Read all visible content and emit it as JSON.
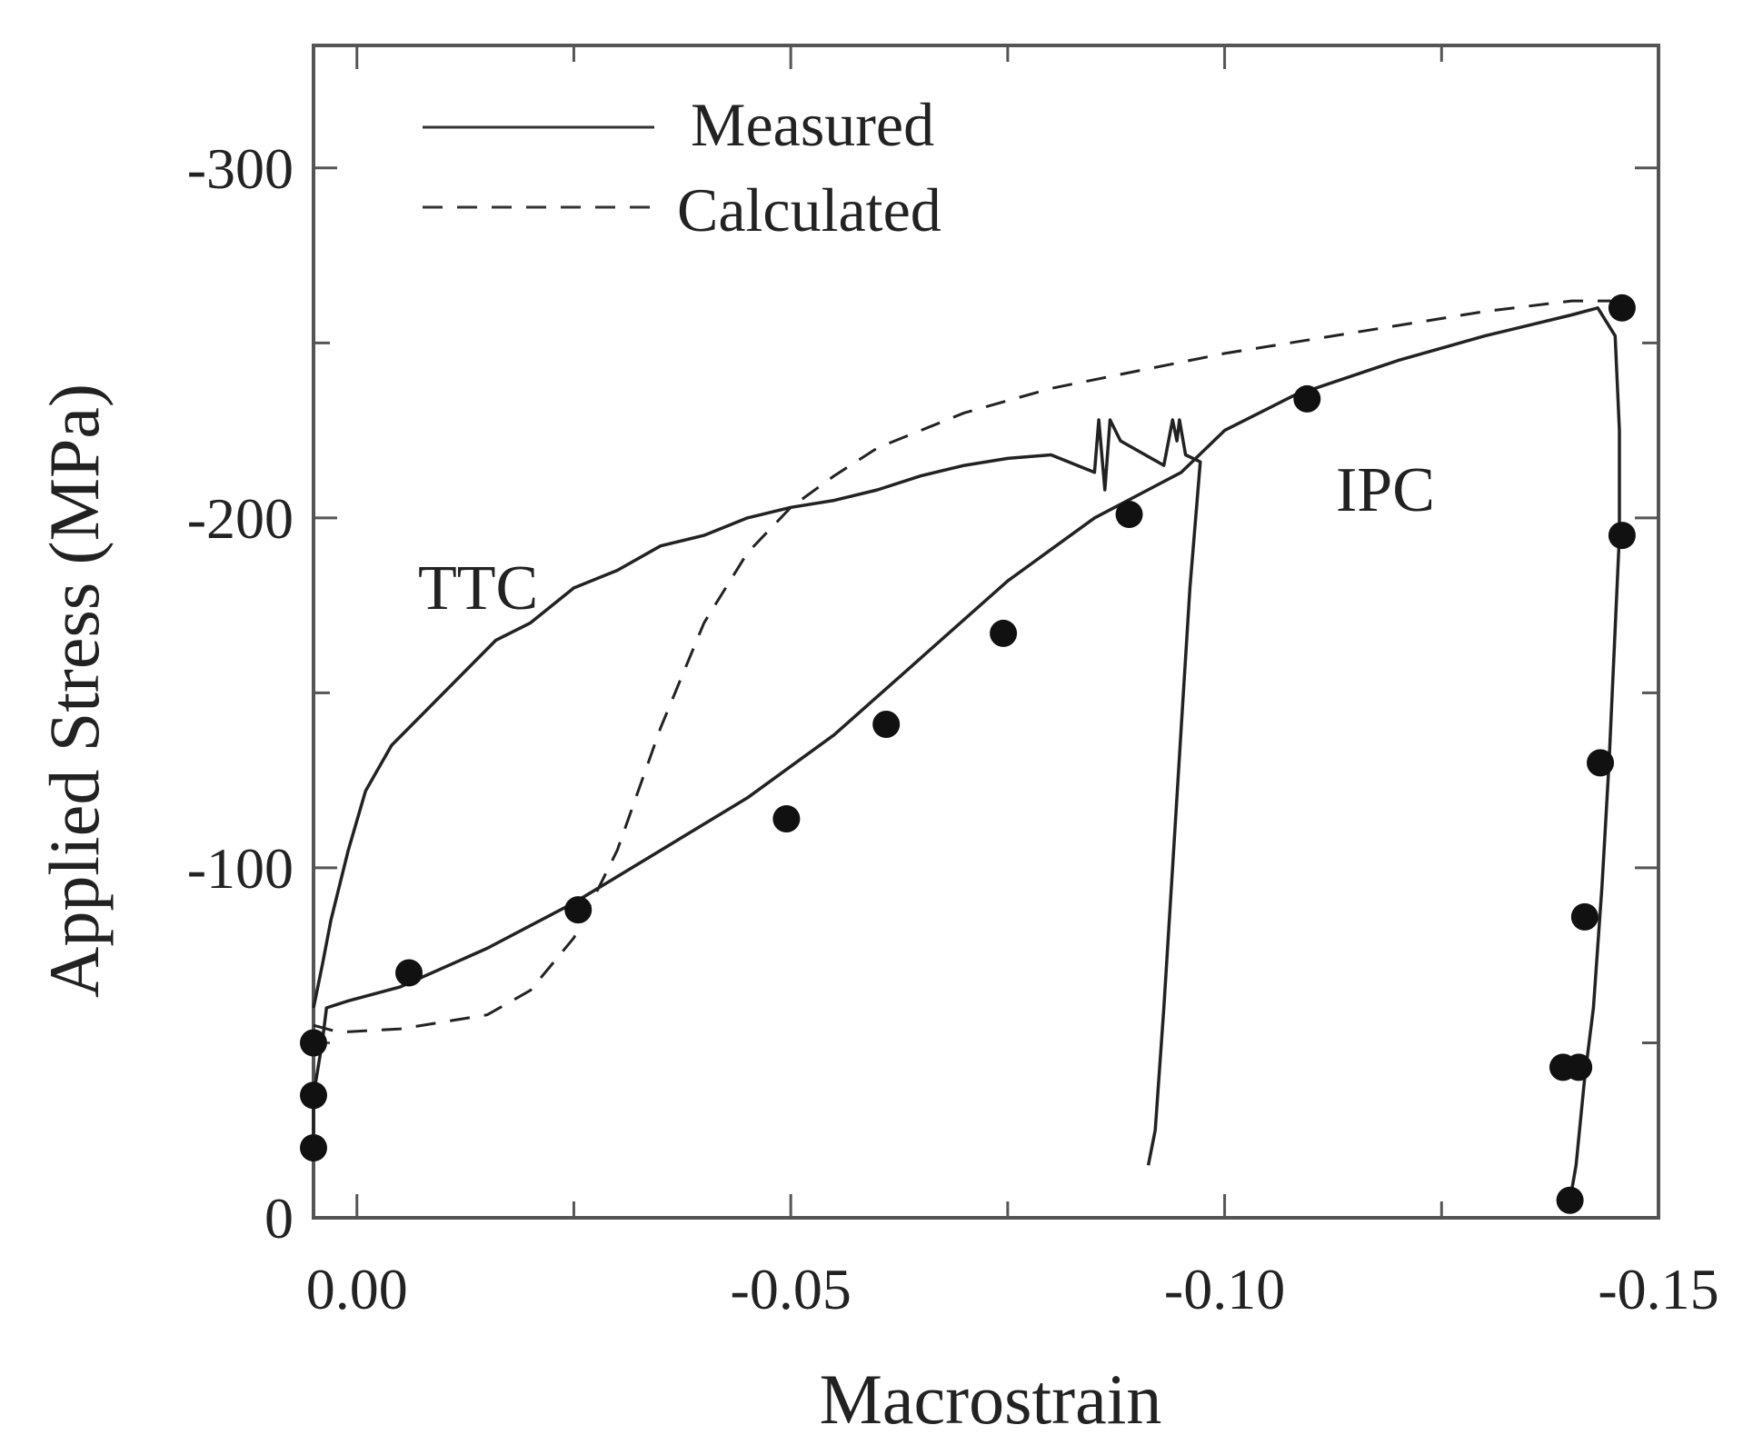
{
  "chart_data": {
    "type": "line",
    "title": "",
    "xlabel": "Macrostrain",
    "ylabel": "Applied Stress (MPa)",
    "xlim": [
      0.005,
      -0.15
    ],
    "ylim": [
      0,
      -335
    ],
    "x_ticks": [
      {
        "value": 0.0,
        "label": "0.00"
      },
      {
        "value": -0.05,
        "label": "-0.05"
      },
      {
        "value": -0.1,
        "label": "-0.10"
      },
      {
        "value": -0.15,
        "label": "-0.15"
      }
    ],
    "y_ticks": [
      {
        "value": 0,
        "label": "0"
      },
      {
        "value": -100,
        "label": "-100"
      },
      {
        "value": -200,
        "label": "-200"
      },
      {
        "value": -300,
        "label": "-300"
      }
    ],
    "x_minor_ticks": [
      -0.025,
      -0.075,
      -0.125
    ],
    "y_minor_ticks": [
      -50,
      -150,
      -250
    ],
    "legend": {
      "position": "top-left",
      "entries": [
        {
          "label": "Measured",
          "style": "solid"
        },
        {
          "label": "Calculated",
          "style": "dashed"
        }
      ]
    },
    "annotations": [
      {
        "text": "TTC",
        "x": -0.005,
        "y": -190
      },
      {
        "text": "IPC",
        "x": -0.1165,
        "y": -213
      }
    ],
    "series": [
      {
        "name": "Measured TTC",
        "style": "solid",
        "x": [
          0.005,
          0.004,
          0.003,
          0.001,
          -0.001,
          -0.004,
          -0.008,
          -0.012,
          -0.016,
          -0.02,
          -0.025,
          -0.03,
          -0.035,
          -0.04,
          -0.045,
          -0.05,
          -0.055,
          -0.06,
          -0.065,
          -0.07,
          -0.075,
          -0.08,
          -0.085,
          -0.0855,
          -0.0862,
          -0.0868,
          -0.088,
          -0.093,
          -0.094,
          -0.0945,
          -0.0948,
          -0.0955,
          -0.0972,
          -0.096,
          -0.095,
          -0.094,
          -0.093,
          -0.092,
          -0.0912
        ],
        "y": [
          -60,
          -72,
          -85,
          -105,
          -122,
          -135,
          -145,
          -155,
          -165,
          -170,
          -180,
          -185,
          -192,
          -195,
          -200,
          -203,
          -205,
          -208,
          -212,
          -215,
          -217,
          -218,
          -213,
          -228,
          -208,
          -228,
          -222,
          -215,
          -228,
          -222,
          -228,
          -218,
          -216,
          -180,
          -140,
          -100,
          -60,
          -25,
          -15
        ]
      },
      {
        "name": "Measured IPC",
        "style": "solid",
        "x": [
          0.005,
          0.005,
          0.004,
          0.0035,
          0.001,
          -0.005,
          -0.015,
          -0.025,
          -0.035,
          -0.045,
          -0.055,
          -0.065,
          -0.075,
          -0.085,
          -0.095,
          -0.1,
          -0.108,
          -0.12,
          -0.13,
          -0.14,
          -0.143,
          -0.145,
          -0.1455,
          -0.1455,
          -0.1443,
          -0.1435,
          -0.1425,
          -0.1415,
          -0.1405,
          -0.1398
        ],
        "y": [
          -20,
          -35,
          -50,
          -60,
          -62,
          -66,
          -77,
          -90,
          -105,
          -120,
          -138,
          -160,
          -182,
          -200,
          -213,
          -225,
          -235,
          -245,
          -252,
          -258,
          -260,
          -252,
          -225,
          -195,
          -130,
          -95,
          -60,
          -40,
          -15,
          -5
        ]
      },
      {
        "name": "Calculated TTC",
        "style": "dashed",
        "x": [
          0.005,
          0.002,
          -0.005,
          -0.015,
          -0.02,
          -0.025,
          -0.03,
          -0.035,
          -0.04,
          -0.045,
          -0.05,
          -0.055,
          -0.06,
          -0.07,
          -0.08,
          -0.09,
          -0.1,
          -0.11,
          -0.12,
          -0.13,
          -0.14,
          -0.1445
        ],
        "y": [
          -55,
          -53,
          -54,
          -58,
          -65,
          -80,
          -105,
          -140,
          -170,
          -190,
          -203,
          -212,
          -220,
          -230,
          -237,
          -242,
          -247,
          -251,
          -255,
          -259,
          -262,
          -262
        ]
      }
    ],
    "markers": {
      "style": "filled-circle",
      "ttc_segment": {
        "x": [
          0.005,
          0.005,
          0.005,
          -0.006,
          -0.0255,
          -0.0495,
          -0.061,
          -0.0745,
          -0.089,
          -0.1095
        ],
        "y": [
          -20,
          -35,
          -50,
          -70,
          -88,
          -114,
          -141,
          -167,
          -201,
          -234
        ]
      },
      "ipc_segment": {
        "x": [
          -0.1458,
          -0.1458,
          -0.1433,
          -0.1415,
          -0.1408,
          -0.139,
          -0.1398
        ],
        "y": [
          -260,
          -195,
          -130,
          -86,
          -43,
          -43,
          -5
        ]
      }
    }
  }
}
